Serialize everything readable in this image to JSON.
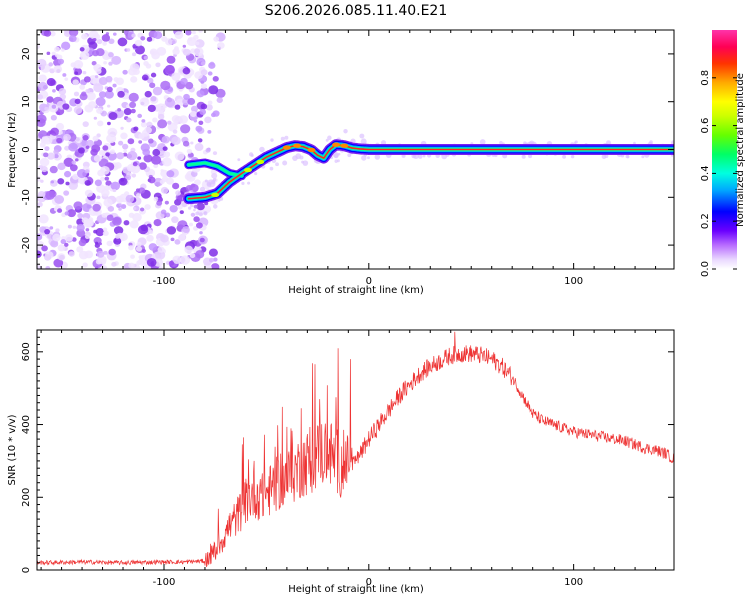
{
  "title": "S206.2026.085.11.40.E21",
  "chart_data": [
    {
      "type": "heatmap",
      "description_label": "spectrogram",
      "xlabel": "Height of straight line (km)",
      "ylabel": "Frequency (Hz)",
      "xlim": [
        -162,
        149
      ],
      "ylim": [
        -25,
        25
      ],
      "xticks": [
        -100,
        0,
        100
      ],
      "xtick_labels": [
        "-100",
        "0",
        "100"
      ],
      "yticks": [
        -20,
        -10,
        0,
        10,
        20
      ],
      "ytick_labels": [
        "-20",
        "-10",
        "0",
        "10",
        "20"
      ],
      "noise_region_x": [
        -162,
        -80
      ],
      "ridge": {
        "x": [
          -88,
          -80,
          -74,
          -68,
          -62,
          -56,
          -50,
          -45,
          -40,
          -36,
          -32,
          -28,
          -25,
          -22,
          -19,
          -16,
          -12,
          -8,
          -4,
          0,
          10,
          30,
          60,
          90,
          120,
          149
        ],
        "y": [
          -10.3,
          -10.0,
          -9.2,
          -6.8,
          -5.0,
          -3.3,
          -1.6,
          -0.6,
          0.4,
          0.8,
          0.6,
          -0.1,
          -1.2,
          -1.8,
          0.0,
          1.0,
          0.8,
          0.3,
          0.1,
          0.0,
          0.0,
          0.0,
          0.0,
          0.0,
          0.0,
          0.0
        ]
      },
      "ridge_upper_branch": {
        "x": [
          -88,
          -80,
          -74,
          -68,
          -62
        ],
        "y": [
          -3.2,
          -2.8,
          -3.5,
          -5.0,
          -5.5
        ]
      },
      "colorbar": {
        "label": "Normalized spectral amplitude",
        "range": [
          0.0,
          1.0
        ],
        "ticks": [
          0.0,
          0.2,
          0.4,
          0.6,
          0.8
        ],
        "tick_labels": [
          "0.0",
          "0.2",
          "0.4",
          "0.6",
          "0.8"
        ]
      }
    },
    {
      "type": "line",
      "xlabel": "Height of straight line (km)",
      "ylabel": "SNR (10 * v/v)",
      "xlim": [
        -162,
        149
      ],
      "ylim": [
        0,
        660
      ],
      "xticks": [
        -100,
        0,
        100
      ],
      "xtick_labels": [
        "-100",
        "0",
        "100"
      ],
      "yticks": [
        0,
        200,
        400,
        600
      ],
      "ytick_labels": [
        "0",
        "200",
        "400",
        "600"
      ],
      "color": "#ee3333",
      "series": [
        {
          "name": "SNR",
          "x": [
            -162,
            -140,
            -120,
            -100,
            -90,
            -80,
            -76,
            -72,
            -68,
            -64,
            -60,
            -56,
            -52,
            -48,
            -44,
            -40,
            -36,
            -32,
            -28,
            -24,
            -20,
            -16,
            -12,
            -8,
            -4,
            0,
            5,
            10,
            15,
            20,
            25,
            30,
            35,
            40,
            45,
            50,
            55,
            60,
            65,
            70,
            75,
            80,
            85,
            90,
            95,
            100,
            105,
            110,
            115,
            120,
            125,
            130,
            135,
            140,
            145,
            149
          ],
          "y": [
            20,
            22,
            20,
            22,
            22,
            25,
            45,
            80,
            120,
            150,
            190,
            210,
            200,
            220,
            240,
            250,
            270,
            290,
            300,
            320,
            330,
            300,
            280,
            290,
            320,
            360,
            400,
            440,
            480,
            510,
            540,
            560,
            575,
            590,
            595,
            595,
            590,
            580,
            560,
            530,
            480,
            430,
            410,
            400,
            390,
            380,
            375,
            370,
            365,
            360,
            355,
            345,
            335,
            330,
            320,
            305
          ],
          "spikes": [
            {
              "x": -56,
              "y": 300
            },
            {
              "x": -51,
              "y": 372
            },
            {
              "x": -43,
              "y": 320
            },
            {
              "x": -33,
              "y": 445
            },
            {
              "x": -24,
              "y": 470
            },
            {
              "x": -15,
              "y": 610
            },
            {
              "x": -9,
              "y": 580
            },
            {
              "x": 42,
              "y": 655
            }
          ]
        }
      ]
    }
  ]
}
